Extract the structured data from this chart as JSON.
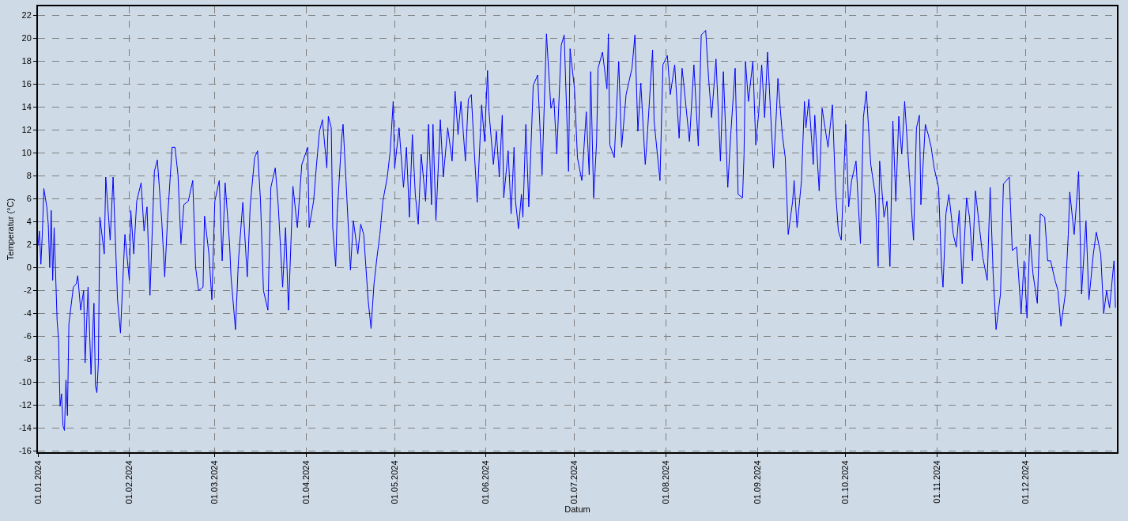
{
  "chart_data": {
    "type": "line",
    "xlabel": "Datum",
    "ylabel": "Temperatur (°C)",
    "x": [
      "2024-01-01",
      "2024-01-01T12:00",
      "2024-01-02",
      "2024-01-02T12:00",
      "2024-01-03",
      "2024-01-04",
      "2024-01-04T12:00",
      "2024-01-05",
      "2024-01-05T12:00",
      "2024-01-06",
      "2024-01-06T12:00",
      "2024-01-07T12:00",
      "2024-01-08",
      "2024-01-08T12:00",
      "2024-01-09",
      "2024-01-09T12:00",
      "2024-01-10",
      "2024-01-10T12:00",
      "2024-01-11",
      "2024-01-11T12:00",
      "2024-01-13",
      "2024-01-14",
      "2024-01-14T12:00",
      "2024-01-15T12:00",
      "2024-01-16T12:00",
      "2024-01-17",
      "2024-01-18",
      "2024-01-19",
      "2024-01-20",
      "2024-01-20T12:00",
      "2024-01-21",
      "2024-01-21T12:00",
      "2024-01-22",
      "2024-01-23T12:00",
      "2024-01-24",
      "2024-01-25T12:00",
      "2024-01-26T12:00",
      "2024-01-28",
      "2024-01-29",
      "2024-01-30T12:00",
      "2024-02-01",
      "2024-02-01T12:00",
      "2024-02-02T12:00",
      "2024-02-03T12:00",
      "2024-02-05",
      "2024-02-06",
      "2024-02-07",
      "2024-02-08",
      "2024-02-09T12:00",
      "2024-02-10T12:00",
      "2024-02-12",
      "2024-02-13",
      "2024-02-14",
      "2024-02-15T12:00",
      "2024-02-16T12:00",
      "2024-02-17T12:00",
      "2024-02-18T12:00",
      "2024-02-19T12:00",
      "2024-02-21",
      "2024-02-22T12:00",
      "2024-02-23T12:00",
      "2024-02-24T12:00",
      "2024-02-26",
      "2024-02-26T12:00",
      "2024-02-28",
      "2024-02-29",
      "2024-03-01",
      "2024-03-02T12:00",
      "2024-03-03T12:00",
      "2024-03-04T12:00",
      "2024-03-06",
      "2024-03-06T12:00",
      "2024-03-08",
      "2024-03-09",
      "2024-03-10T12:00",
      "2024-03-12",
      "2024-03-13",
      "2024-03-14T12:00",
      "2024-03-15T12:00",
      "2024-03-16T12:00",
      "2024-03-17T12:00",
      "2024-03-19",
      "2024-03-20",
      "2024-03-21T12:00",
      "2024-03-22T12:00",
      "2024-03-24",
      "2024-03-25",
      "2024-03-26",
      "2024-03-27T12:00",
      "2024-03-29",
      "2024-03-30T12:00",
      "2024-04-01T12:00",
      "2024-04-02",
      "2024-04-03T12:00",
      "2024-04-04T12:00",
      "2024-04-05T12:00",
      "2024-04-06T12:00",
      "2024-04-08",
      "2024-04-08T12:00",
      "2024-04-09T12:00",
      "2024-04-10",
      "2024-04-11",
      "2024-04-11T12:00",
      "2024-04-13",
      "2024-04-13T12:00",
      "2024-04-14T12:00",
      "2024-04-16",
      "2024-04-17",
      "2024-04-18T12:00",
      "2024-04-19T12:00",
      "2024-04-20T12:00",
      "2024-04-22",
      "2024-04-23",
      "2024-04-24",
      "2024-04-25",
      "2024-04-26",
      "2024-04-27",
      "2024-04-28T12:00",
      "2024-04-29T12:00",
      "2024-04-30T12:00",
      "2024-05-01",
      "2024-05-02T12:00",
      "2024-05-04",
      "2024-05-05",
      "2024-05-06",
      "2024-05-07",
      "2024-05-08",
      "2024-05-09",
      "2024-05-10",
      "2024-05-11T12:00",
      "2024-05-12T12:00",
      "2024-05-13T12:00",
      "2024-05-14",
      "2024-05-15",
      "2024-05-16T12:00",
      "2024-05-17T12:00",
      "2024-05-19",
      "2024-05-20T12:00",
      "2024-05-21T12:00",
      "2024-05-22T12:00",
      "2024-05-23T12:00",
      "2024-05-25",
      "2024-05-26",
      "2024-05-27",
      "2024-05-28",
      "2024-05-29",
      "2024-05-30T12:00",
      "2024-05-31T12:00",
      "2024-06-01T12:00",
      "2024-06-02",
      "2024-06-03T12:00",
      "2024-06-04T12:00",
      "2024-06-05T12:00",
      "2024-06-06T12:00",
      "2024-06-07",
      "2024-06-08T12:00",
      "2024-06-09T12:00",
      "2024-06-10T12:00",
      "2024-06-11",
      "2024-06-12",
      "2024-06-13",
      "2024-06-13T12:00",
      "2024-06-14T12:00",
      "2024-06-15T12:00",
      "2024-06-17",
      "2024-06-18T12:00",
      "2024-06-20",
      "2024-06-21T12:00",
      "2024-06-23",
      "2024-06-24",
      "2024-06-25",
      "2024-06-26T12:00",
      "2024-06-27T12:00",
      "2024-06-29",
      "2024-06-29T12:00",
      "2024-07-01",
      "2024-07-02",
      "2024-07-03T12:00",
      "2024-07-05",
      "2024-07-06",
      "2024-07-06T12:00",
      "2024-07-07T12:00",
      "2024-07-08T12:00",
      "2024-07-09",
      "2024-07-10T12:00",
      "2024-07-12",
      "2024-07-12T12:00",
      "2024-07-13",
      "2024-07-14T12:00",
      "2024-07-16",
      "2024-07-17",
      "2024-07-18T12:00",
      "2024-07-20T12:00",
      "2024-07-21T12:00",
      "2024-07-22T12:00",
      "2024-07-23T12:00",
      "2024-07-25",
      "2024-07-25T12:00",
      "2024-07-27T12:00",
      "2024-07-28",
      "2024-07-30",
      "2024-07-31",
      "2024-08-01T12:00",
      "2024-08-02T12:00",
      "2024-08-04",
      "2024-08-05T12:00",
      "2024-08-06T12:00",
      "2024-08-07",
      "2024-08-09",
      "2024-08-10T12:00",
      "2024-08-12",
      "2024-08-13",
      "2024-08-14T12:00",
      "2024-08-15T12:00",
      "2024-08-16T12:00",
      "2024-08-18",
      "2024-08-19T12:00",
      "2024-08-20T12:00",
      "2024-08-22",
      "2024-08-23",
      "2024-08-24T12:00",
      "2024-08-25T12:00",
      "2024-08-27",
      "2024-08-27T12:00",
      "2024-08-28",
      "2024-08-29",
      "2024-08-30T12:00",
      "2024-08-31T12:00",
      "2024-09-01T12:00",
      "2024-09-02T12:00",
      "2024-09-03T12:00",
      "2024-09-04T12:00",
      "2024-09-05T12:00",
      "2024-09-06T12:00",
      "2024-09-07T12:00",
      "2024-09-08",
      "2024-09-09T12:00",
      "2024-09-10T12:00",
      "2024-09-11T12:00",
      "2024-09-13",
      "2024-09-13T12:00",
      "2024-09-14T12:00",
      "2024-09-16",
      "2024-09-17",
      "2024-09-17T12:00",
      "2024-09-18T12:00",
      "2024-09-20",
      "2024-09-20T12:00",
      "2024-09-22",
      "2024-09-23",
      "2024-09-24",
      "2024-09-25",
      "2024-09-26T12:00",
      "2024-09-27T12:00",
      "2024-09-28T12:00",
      "2024-09-29T12:00",
      "2024-10-01",
      "2024-10-02",
      "2024-10-03",
      "2024-10-04T12:00",
      "2024-10-06",
      "2024-10-07",
      "2024-10-08",
      "2024-10-09T12:00",
      "2024-10-11",
      "2024-10-12",
      "2024-10-12T12:00",
      "2024-10-14",
      "2024-10-15",
      "2024-10-16",
      "2024-10-17",
      "2024-10-18",
      "2024-10-19",
      "2024-10-20",
      "2024-10-21",
      "2024-10-22T12:00",
      "2024-10-24",
      "2024-10-25",
      "2024-10-26",
      "2024-10-26T12:00",
      "2024-10-28",
      "2024-10-29",
      "2024-10-30",
      "2024-10-31",
      "2024-11-01T12:00",
      "2024-11-02T12:00",
      "2024-11-03",
      "2024-11-04",
      "2024-11-05",
      "2024-11-06T12:00",
      "2024-11-07T12:00",
      "2024-11-08T12:00",
      "2024-11-09T12:00",
      "2024-11-11",
      "2024-11-12",
      "2024-11-13",
      "2024-11-14",
      "2024-11-15T12:00",
      "2024-11-16T12:00",
      "2024-11-18",
      "2024-11-19",
      "2024-11-20",
      "2024-11-21",
      "2024-11-22T12:00",
      "2024-11-23T12:00",
      "2024-11-25T12:00",
      "2024-11-26T12:00",
      "2024-11-28",
      "2024-11-29T12:00",
      "2024-11-30T12:00",
      "2024-12-01T12:00",
      "2024-12-02T12:00",
      "2024-12-03T12:00",
      "2024-12-05",
      "2024-12-06",
      "2024-12-07T12:00",
      "2024-12-08T12:00",
      "2024-12-09T12:00",
      "2024-12-11",
      "2024-12-12",
      "2024-12-13",
      "2024-12-14T12:00",
      "2024-12-15T12:00",
      "2024-12-16",
      "2024-12-17T12:00",
      "2024-12-18T12:00",
      "2024-12-19",
      "2024-12-20",
      "2024-12-21T12:00",
      "2024-12-22T12:00",
      "2024-12-24",
      "2024-12-25",
      "2024-12-26T12:00",
      "2024-12-27T12:00",
      "2024-12-28T12:00",
      "2024-12-29T12:00",
      "2024-12-31",
      "2024-12-31T12:00"
    ],
    "series": [
      {
        "color": "#0000ff",
        "values": [
          1.9,
          3.2,
          0.3,
          3,
          6.9,
          5.3,
          3.8,
          0,
          5,
          -1.1,
          3.5,
          -4.6,
          -6.3,
          -12.1,
          -11,
          -13.8,
          -14.2,
          -9.8,
          -12.9,
          -4.9,
          -1.7,
          -1.4,
          -0.7,
          -3.7,
          -2,
          -8.3,
          -1.7,
          -9.3,
          -3.1,
          -10.3,
          -10.9,
          -8.3,
          4.4,
          1.2,
          7.9,
          2.4,
          7.9,
          -2.8,
          -5.7,
          2.9,
          -1.1,
          5,
          1.2,
          5.8,
          7.4,
          3.2,
          5.3,
          -2.4,
          8.4,
          9.4,
          4.1,
          -0.8,
          4.4,
          10.5,
          10.5,
          8.1,
          2.1,
          5.5,
          5.8,
          7.6,
          0,
          -2,
          -1.7,
          4.5,
          1.2,
          -2.8,
          5.8,
          7.6,
          0.6,
          7.4,
          2.1,
          -0.8,
          -5.4,
          0.6,
          5.7,
          -0.8,
          5.4,
          9.6,
          10.2,
          5.8,
          -2,
          -3.7,
          7,
          8.7,
          5.5,
          -1.7,
          3.5,
          -3.7,
          7.1,
          3.5,
          9,
          10.5,
          3.5,
          5.8,
          9,
          11.9,
          12.9,
          8.7,
          13.2,
          12.2,
          3.5,
          0.1,
          4.7,
          11.2,
          12.5,
          7.6,
          -0.2,
          4.1,
          1.2,
          3.8,
          2.9,
          -2.8,
          -5.3,
          -1.4,
          0.9,
          2.9,
          5.8,
          7.9,
          10.2,
          14.5,
          8.7,
          12.2,
          7,
          10.5,
          4.4,
          11.6,
          6.4,
          3.8,
          9.9,
          5.8,
          12.5,
          5.5,
          12.5,
          4.1,
          12.9,
          7.9,
          12.2,
          9.3,
          15.4,
          11.6,
          14.5,
          9.3,
          14.7,
          15.1,
          10.2,
          5.7,
          14.2,
          11,
          17.2,
          13.6,
          9,
          11.9,
          7.9,
          13.3,
          6.1,
          10.2,
          4.7,
          10.5,
          5.8,
          3.4,
          6.4,
          4.4,
          12.5,
          5.3,
          15.9,
          16.8,
          8.1,
          20.4,
          13.9,
          14.8,
          9.9,
          19.4,
          20.3,
          8.4,
          19.1,
          15.6,
          9.6,
          7.6,
          13.6,
          8.1,
          17.1,
          6.1,
          11,
          17.4,
          18.8,
          15.6,
          20.4,
          10.7,
          9.6,
          18,
          10.5,
          15.1,
          17.4,
          20.3,
          11.9,
          16.1,
          9,
          10.7,
          19,
          12.8,
          7.6,
          17.7,
          18.5,
          15.1,
          17.7,
          11.3,
          17.4,
          16.2,
          11,
          17.7,
          10.6,
          20.3,
          20.7,
          16.5,
          13.1,
          18.2,
          9.3,
          17.1,
          7,
          11.6,
          17.4,
          6.4,
          6.1,
          9.8,
          18,
          14.5,
          18,
          10.7,
          13.6,
          17.7,
          13.1,
          18.8,
          13.6,
          8.7,
          13.6,
          16.5,
          11.6,
          9.6,
          2.9,
          5.8,
          7.6,
          3.5,
          7.6,
          14.5,
          12.2,
          14.7,
          9,
          13.3,
          6.7,
          13.9,
          12.2,
          10.5,
          14.2,
          7,
          3.2,
          2.4,
          12.5,
          5.3,
          7.6,
          9.3,
          2.1,
          13.1,
          15.4,
          9,
          6.4,
          0.1,
          9.3,
          4.4,
          5.8,
          0.1,
          12.8,
          5.8,
          13.2,
          9.9,
          14.5,
          8.4,
          2.4,
          12.2,
          13.3,
          5.5,
          12.5,
          11.6,
          10.5,
          8.7,
          7,
          0.1,
          -1.7,
          4.7,
          6.4,
          2.9,
          1.8,
          5,
          -1.4,
          6.1,
          4.4,
          0.6,
          6.7,
          3.2,
          0.9,
          -1.1,
          7,
          -0.5,
          -5.4,
          -2.3,
          7.3,
          7.9,
          1.5,
          1.8,
          -4,
          0.6,
          -4.4,
          2.9,
          -0.5,
          -3.1,
          4.7,
          4.4,
          0.6,
          0.6,
          -1.1,
          -2,
          -5.1,
          -2.3,
          2.9,
          6.6,
          2.9,
          6.4,
          8.4,
          -2.3,
          4.1,
          -2.8,
          1.2,
          3.1,
          1.2,
          -4,
          -2,
          -3.5,
          0.6,
          -3.5
        ]
      }
    ],
    "xlim": [
      "2024-01-01",
      "2025-01-01"
    ],
    "xticks": [
      {
        "value": "2024-01-01",
        "label": "01.01.2024"
      },
      {
        "value": "2024-02-01",
        "label": "01.02.2024"
      },
      {
        "value": "2024-03-01",
        "label": "01.03.2024"
      },
      {
        "value": "2024-04-01",
        "label": "01.04.2024"
      },
      {
        "value": "2024-05-01",
        "label": "01.05.2024"
      },
      {
        "value": "2024-06-01",
        "label": "01.06.2024"
      },
      {
        "value": "2024-07-01",
        "label": "01.07.2024"
      },
      {
        "value": "2024-08-01",
        "label": "01.08.2024"
      },
      {
        "value": "2024-09-01",
        "label": "01.09.2024"
      },
      {
        "value": "2024-10-01",
        "label": "01.10.2024"
      },
      {
        "value": "2024-11-01",
        "label": "01.11.2024"
      },
      {
        "value": "2024-12-01",
        "label": "01.12.2024"
      }
    ],
    "ylim": [
      -16.1,
      22.8
    ],
    "yticks": [
      -16,
      -14,
      -12,
      -10,
      -8,
      -6,
      -4,
      -2,
      0,
      2,
      4,
      6,
      8,
      10,
      12,
      14,
      16,
      18,
      20,
      22
    ],
    "grid": true,
    "marker": "none",
    "line_style": "solid"
  }
}
